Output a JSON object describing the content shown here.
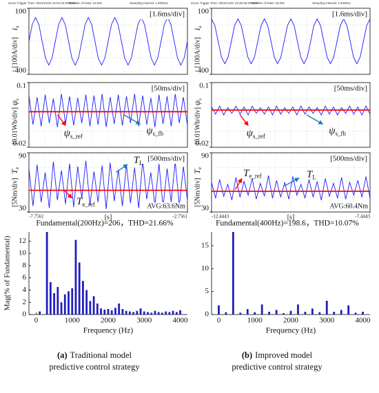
{
  "chart_data": [
    {
      "type": "line",
      "header": [
        "Zoom Trigger Time: 2022/11/02 16:04:34.000000",
        "Number of Data: 12,502",
        "Sampling Interval: 1.6000us"
      ],
      "ylabel_symbol": "i",
      "ylabel_sub": "a",
      "ylabel_unit": "[100A/div]",
      "scale_note": "[1.6ms/div]",
      "ylim": [
        -400,
        100
      ],
      "yticks": [
        100,
        -400
      ],
      "series": [
        {
          "color": "#1a1aff",
          "values": [
            -150,
            -23,
            30,
            -23,
            -150,
            -277,
            -330,
            -277,
            -150,
            -23,
            30,
            -23,
            -150,
            -277,
            -330,
            -277,
            -150,
            -23,
            30,
            -23,
            -150,
            -277,
            -330,
            -277,
            -150,
            -23,
            30,
            -23,
            -150,
            -277,
            -330,
            -277,
            -150,
            -23,
            30,
            -23,
            -150,
            -277,
            -330,
            -277,
            -150,
            -23,
            30,
            -23,
            -150,
            -277,
            -330,
            -277,
            -150
          ]
        }
      ]
    },
    {
      "type": "line",
      "ylabel_symbol": "ψ",
      "ylabel_sub": "s",
      "ylabel_unit": "[0.01Wb/div]",
      "scale_note": "[50ms/div]",
      "ylim": [
        0.02,
        0.1
      ],
      "yticks": [
        0.1,
        0.02
      ],
      "series": [
        {
          "color": "#1a1aff",
          "values": [
            0.084,
            0.048,
            0.082,
            0.046,
            0.085,
            0.05,
            0.08,
            0.045,
            0.086,
            0.049,
            0.083,
            0.047,
            0.081,
            0.05,
            0.085,
            0.046,
            0.084,
            0.048,
            0.086,
            0.045,
            0.082,
            0.049,
            0.085,
            0.047,
            0.083,
            0.05,
            0.086,
            0.046,
            0.084,
            0.048,
            0.081,
            0.045,
            0.085,
            0.049,
            0.083,
            0.046,
            0.086,
            0.05,
            0.082,
            0.047
          ]
        },
        {
          "color": "#ff0000",
          "values": [
            0.064,
            0.064
          ]
        }
      ],
      "annotations": [
        {
          "symbol": "ψ",
          "sub": "s_ref",
          "color": "#ff0000"
        },
        {
          "symbol": "ψ",
          "sub": "s_fb",
          "color": "#1a7fc0"
        }
      ]
    },
    {
      "type": "line",
      "ylabel_symbol": "T",
      "ylabel_sub": "e",
      "ylabel_unit": "[5Nm/div]",
      "scale_note": "[500ms/div]",
      "ylim": [
        30,
        90
      ],
      "yticks": [
        90,
        30
      ],
      "xlim": [
        -7.7561,
        -2.7561
      ],
      "xticks": [
        -7.7561,
        -2.7561
      ],
      "xlabel": "[s]",
      "avg_note": "AVG:63.6Nm",
      "series": [
        {
          "color": "#1a1aff",
          "values": [
            74,
            36,
            78,
            40,
            70,
            34,
            81,
            42,
            72,
            38,
            79,
            35,
            76,
            44,
            82,
            37,
            71,
            40,
            77,
            33,
            80,
            41,
            73,
            36,
            78,
            39,
            75,
            34,
            82,
            43,
            70,
            37,
            79,
            35,
            74,
            40,
            81,
            36,
            76,
            42
          ]
        },
        {
          "color": "#ff0000",
          "values": [
            52,
            52
          ]
        }
      ],
      "annotations": [
        {
          "symbol": "T",
          "sub": "L",
          "color": "#1a7fc0"
        },
        {
          "symbol": "T",
          "sub": "e_ref",
          "color": "#ff0000"
        }
      ]
    },
    {
      "type": "bar",
      "title": "Fundamental(200Hz)=206，THD=21.66%",
      "ylabel": "Mag(% of Fundamental)",
      "xlabel": "Frequency (Hz)",
      "color": "#1f1fbf",
      "xlim": [
        -200,
        4200
      ],
      "xticks": [
        0,
        1000,
        2000,
        3000,
        4000
      ],
      "ylim": [
        0,
        13.5
      ],
      "yticks": [
        0,
        2,
        4,
        6,
        8,
        10,
        12
      ],
      "x": [
        100,
        300,
        400,
        500,
        600,
        700,
        800,
        900,
        1000,
        1100,
        1200,
        1300,
        1400,
        1500,
        1600,
        1700,
        1800,
        1900,
        2000,
        2100,
        2200,
        2300,
        2400,
        2500,
        2600,
        2700,
        2800,
        2900,
        3000,
        3100,
        3200,
        3300,
        3400,
        3500,
        3600,
        3700,
        3800,
        3900,
        4000
      ],
      "values": [
        0.5,
        13.5,
        5.3,
        3.5,
        4.5,
        2,
        3.3,
        3.8,
        4.3,
        12.2,
        8.5,
        5.5,
        4,
        2.2,
        3,
        1.8,
        1,
        0.8,
        0.9,
        0.7,
        1.1,
        1.8,
        0.9,
        0.6,
        0.5,
        0.4,
        0.6,
        1,
        0.5,
        0.4,
        0.3,
        0.6,
        0.4,
        0.3,
        0.5,
        0.4,
        0.6,
        0.4,
        0.7
      ]
    },
    {
      "type": "line",
      "header": [
        "Zoom Trigger Time: 2022/11/01 15:36:36.000000",
        "Number of Data: 10,001",
        "Sampling Interval: 1.6000us"
      ],
      "ylabel_symbol": "i",
      "ylabel_sub": "a",
      "ylabel_unit": "[100A/div]",
      "scale_note": "[1.6ms/div]",
      "ylim": [
        -400,
        100
      ],
      "yticks": [
        100,
        -400
      ],
      "series": [
        {
          "color": "#1a1aff",
          "values": [
            20,
            -30,
            -150,
            -270,
            -320,
            -270,
            -150,
            -30,
            20,
            -30,
            -150,
            -270,
            -320,
            -270,
            -150,
            -30,
            20,
            -30,
            -150,
            -270,
            -320,
            -270,
            -150,
            -30,
            20,
            -30,
            -150,
            -270,
            -320,
            -270,
            -150,
            -30,
            20,
            -30,
            -150,
            -270,
            -320,
            -270,
            -150,
            -30,
            20,
            -30,
            -150,
            -270,
            -320,
            -270,
            -150,
            -30,
            20
          ]
        }
      ]
    },
    {
      "type": "line",
      "ylabel_symbol": "ψ",
      "ylabel_sub": "s",
      "ylabel_unit": "[0.01Wb/div]",
      "scale_note": "[50ms/div]",
      "ylim": [
        0.02,
        0.1
      ],
      "yticks": [
        0.1,
        0.02
      ],
      "series": [
        {
          "color": "#1a1aff",
          "values": [
            0.07,
            0.061,
            0.071,
            0.06,
            0.069,
            0.062,
            0.071,
            0.061,
            0.07,
            0.06,
            0.071,
            0.062,
            0.069,
            0.061,
            0.07,
            0.06,
            0.071,
            0.061,
            0.069,
            0.062,
            0.07,
            0.06,
            0.071,
            0.061,
            0.07,
            0.062,
            0.069,
            0.06,
            0.071,
            0.061,
            0.07,
            0.06,
            0.069,
            0.062,
            0.071,
            0.061,
            0.07,
            0.06,
            0.071,
            0.061
          ]
        },
        {
          "color": "#ff0000",
          "values": [
            0.066,
            0.066
          ]
        }
      ],
      "annotations": [
        {
          "symbol": "ψ",
          "sub": "s_ref",
          "color": "#ff0000"
        },
        {
          "symbol": "ψ",
          "sub": "s_fb",
          "color": "#1a7fc0"
        }
      ]
    },
    {
      "type": "line",
      "ylabel_symbol": "T",
      "ylabel_sub": "e",
      "ylabel_unit": "[5Nm/div]",
      "scale_note": "[500ms/div]",
      "ylim": [
        30,
        90
      ],
      "yticks": [
        90,
        30
      ],
      "xlim": [
        -12.4443,
        -7.4443
      ],
      "xticks": [
        -12.4443,
        -7.4443
      ],
      "xlabel": "[s]",
      "avg_note": "AVG:60.4Nm",
      "series": [
        {
          "color": "#1a1aff",
          "values": [
            60,
            44,
            63,
            46,
            58,
            42,
            65,
            45,
            61,
            47,
            64,
            43,
            59,
            46,
            67,
            44,
            62,
            45,
            60,
            43,
            66,
            47,
            58,
            44,
            63,
            45,
            61,
            42,
            64,
            46,
            59,
            44,
            65,
            43,
            60,
            47,
            62,
            45,
            66,
            44
          ]
        },
        {
          "color": "#ff0000",
          "values": [
            51,
            51
          ]
        }
      ],
      "annotations": [
        {
          "symbol": "T",
          "sub": "e_ref",
          "color": "#ff0000"
        },
        {
          "symbol": "T",
          "sub": "L",
          "color": "#1a7fc0"
        }
      ]
    },
    {
      "type": "bar",
      "title": "Fundamental(400Hz)=198.6，THD=10.07%",
      "xlabel": "Frequency (Hz)",
      "color": "#1f1fbf",
      "xlim": [
        -200,
        4200
      ],
      "xticks": [
        0,
        1000,
        2000,
        3000,
        4000
      ],
      "ylim": [
        0,
        18
      ],
      "yticks": [
        0,
        5,
        10,
        15
      ],
      "x": [
        0,
        200,
        400,
        600,
        800,
        1000,
        1200,
        1400,
        1600,
        1800,
        2000,
        2200,
        2400,
        2600,
        2800,
        3000,
        3200,
        3400,
        3600,
        3800,
        4000
      ],
      "values": [
        2,
        0.5,
        18,
        0.4,
        1.2,
        0.5,
        2.2,
        0.6,
        1,
        0.3,
        0.8,
        2.2,
        0.6,
        1.3,
        0.5,
        3,
        0.6,
        1,
        2,
        0.4,
        0.6
      ]
    }
  ],
  "captions": [
    {
      "label": "(a)",
      "line1": "Traditional model",
      "line2": "predictive control strategy"
    },
    {
      "label": "(b)",
      "line1": "Improved model",
      "line2": "predictive control strategy"
    }
  ]
}
